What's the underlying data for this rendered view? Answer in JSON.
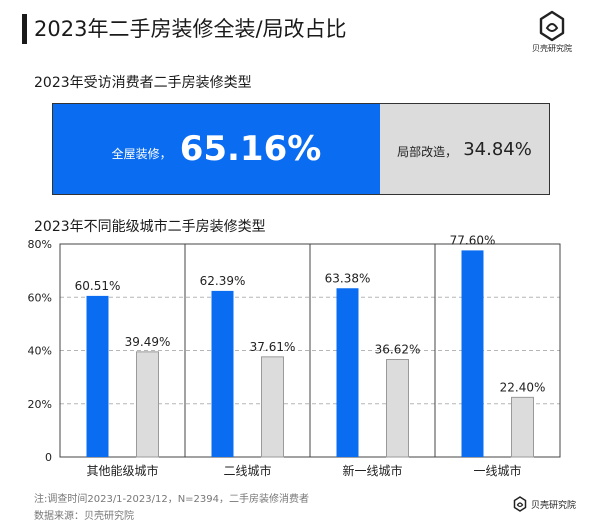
{
  "title": "2023年二手房装修全装/局改占比",
  "brand": {
    "name": "贝壳研究院"
  },
  "overall": {
    "heading": "2023年受访消费者二手房装修类型",
    "full_label": "全屋装修，",
    "full_value": "65.16%",
    "partial_label": "局部改造，",
    "partial_value": "34.84%",
    "colors": {
      "full": "#0a6cf0",
      "partial": "#dcdcdc"
    }
  },
  "chart_title": "2023年不同能级城市二手房装修类型",
  "chart_data": {
    "type": "bar",
    "categories": [
      "其他能级城市",
      "二线城市",
      "新一线城市",
      "一线城市"
    ],
    "series": [
      {
        "values": [
          60.51,
          62.39,
          63.38,
          77.6
        ],
        "labels": [
          "60.51%",
          "62.39%",
          "63.38%",
          "77.60%"
        ],
        "color": "#0a6cf0"
      },
      {
        "values": [
          39.49,
          37.61,
          36.62,
          22.4
        ],
        "labels": [
          "39.49%",
          "37.61%",
          "36.62%",
          "22.40%"
        ],
        "color": "#dcdcdc"
      }
    ],
    "yticks": [
      "0",
      "20%",
      "40%",
      "60%",
      "80%"
    ],
    "ylim": [
      0,
      80
    ],
    "grid": "dashed"
  },
  "footnote": "注:调查时间2023/1-2023/12，N=2394，二手房装修消费者",
  "source": "数据来源：贝壳研究院"
}
